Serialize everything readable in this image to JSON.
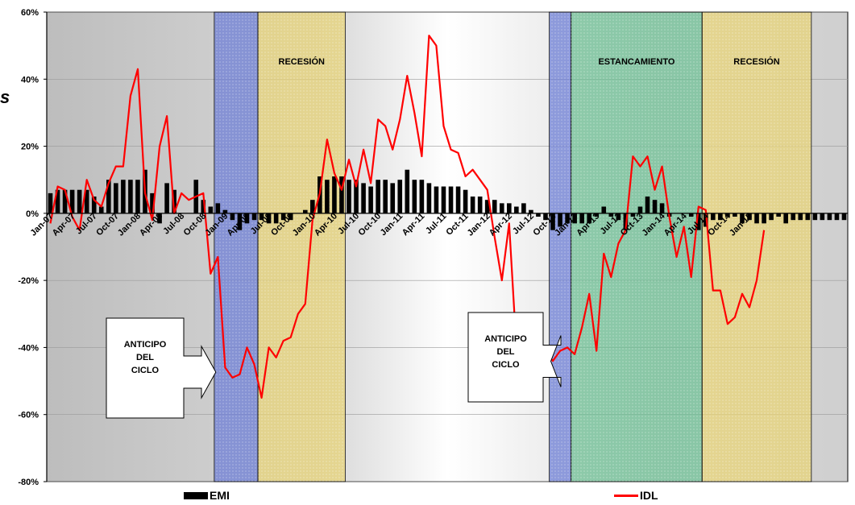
{
  "chart_data": {
    "type": "bar+line",
    "y_axis": {
      "min": -80,
      "max": 60,
      "step": 20,
      "tick_labels": [
        "60%",
        "40%",
        "20%",
        "0%",
        "-20%",
        "-40%",
        "-60%",
        "-80%"
      ]
    },
    "x_tick_labels": [
      "Jan-07",
      "Apr-07",
      "Jul-07",
      "Oct-07",
      "Jan-08",
      "Apr-08",
      "Jul-08",
      "Oct-08",
      "Jan-09",
      "Apr-09",
      "Jul-09",
      "Oct-09",
      "Jan-10",
      "Apr-10",
      "Jul-10",
      "Oct-10",
      "Jan-11",
      "Apr-11",
      "Jul-11",
      "Oct-11",
      "Jan-12",
      "Apr-12",
      "Jul-12",
      "Oct-12",
      "Jan-13",
      "Apr-13",
      "Jul-13",
      "Oct-13",
      "Jan-14",
      "Apr-14",
      "Jul-14",
      "Oct-14",
      "Jan-15"
    ],
    "series": [
      {
        "name": "EMI",
        "type": "bar",
        "color": "#000000",
        "values": [
          6,
          7,
          7,
          7,
          7,
          7,
          5,
          2,
          10,
          9,
          10,
          10,
          10,
          13,
          6,
          -3,
          9,
          7,
          0,
          0,
          10,
          4,
          2,
          3,
          1,
          -2,
          -5,
          -3,
          -2,
          -2,
          -3,
          -3,
          -2,
          -2,
          0,
          1,
          4,
          11,
          10,
          11,
          11,
          10,
          10,
          9,
          8,
          10,
          10,
          9,
          10,
          13,
          10,
          10,
          9,
          8,
          8,
          8,
          8,
          7,
          5,
          5,
          4,
          4,
          3,
          3,
          2,
          3,
          1,
          -1,
          -2,
          -5,
          -4,
          -3,
          -3,
          -3,
          -3,
          -1,
          2,
          -1,
          -2,
          -5,
          -1,
          2,
          5,
          4,
          3,
          -1,
          0,
          0,
          -1,
          -5,
          -4,
          -2,
          -2,
          -1,
          -1,
          -3,
          -2,
          -3,
          -3,
          -2,
          -1,
          -3,
          -2,
          -2,
          -2,
          -2,
          -2,
          -2,
          -2,
          -2
        ]
      },
      {
        "name": "IDL",
        "type": "line",
        "color": "#ff0000",
        "values": [
          -3,
          8,
          7,
          -1,
          -5,
          10,
          4,
          2,
          9,
          14,
          14,
          35,
          43,
          6,
          -2,
          20,
          29,
          0,
          6,
          4,
          5,
          6,
          -18,
          -13,
          -46,
          -49,
          -48,
          -40,
          -45,
          -55,
          -40,
          -43,
          -38,
          -37,
          -30,
          -27,
          -2,
          6,
          22,
          12,
          7,
          16,
          8,
          19,
          9,
          28,
          26,
          19,
          28,
          41,
          30,
          17,
          53,
          50,
          26,
          19,
          18,
          11,
          13,
          10,
          7,
          -7,
          -20,
          -3,
          -40,
          -39,
          -39,
          -37,
          -41,
          -44,
          -41,
          -40,
          -42,
          -34,
          -24,
          -41,
          -12,
          -19,
          -9,
          -5,
          17,
          14,
          17,
          7,
          14,
          -1,
          -13,
          -4,
          -19,
          2,
          1,
          -23,
          -23,
          -33,
          -31,
          -24,
          -28,
          -20,
          -5
        ]
      }
    ],
    "shaded_periods": [
      {
        "start": 23,
        "end": 28,
        "label": "",
        "color": "#6e7fd6"
      },
      {
        "start": 29,
        "end": 40,
        "label": "RECESIÓN",
        "color": "#e8d478"
      },
      {
        "start": 69,
        "end": 71,
        "label": "",
        "color": "#6e7fd6"
      },
      {
        "start": 72,
        "end": 89,
        "label": "ESTANCAMIENTO",
        "color": "#6fc095"
      },
      {
        "start": 90,
        "end": 104,
        "label": "RECESIÓN",
        "color": "#e8d478"
      }
    ],
    "callouts": [
      {
        "lines": [
          "ANTICIPO",
          "DEL",
          "CICLO"
        ],
        "points_to_period": 0
      },
      {
        "lines": [
          "ANTICIPO",
          "DEL",
          "CICLO"
        ],
        "points_to_period": 2
      }
    ]
  },
  "legend": {
    "emi_label": "EMI",
    "idl_label": "IDL"
  },
  "stray_text": "s"
}
